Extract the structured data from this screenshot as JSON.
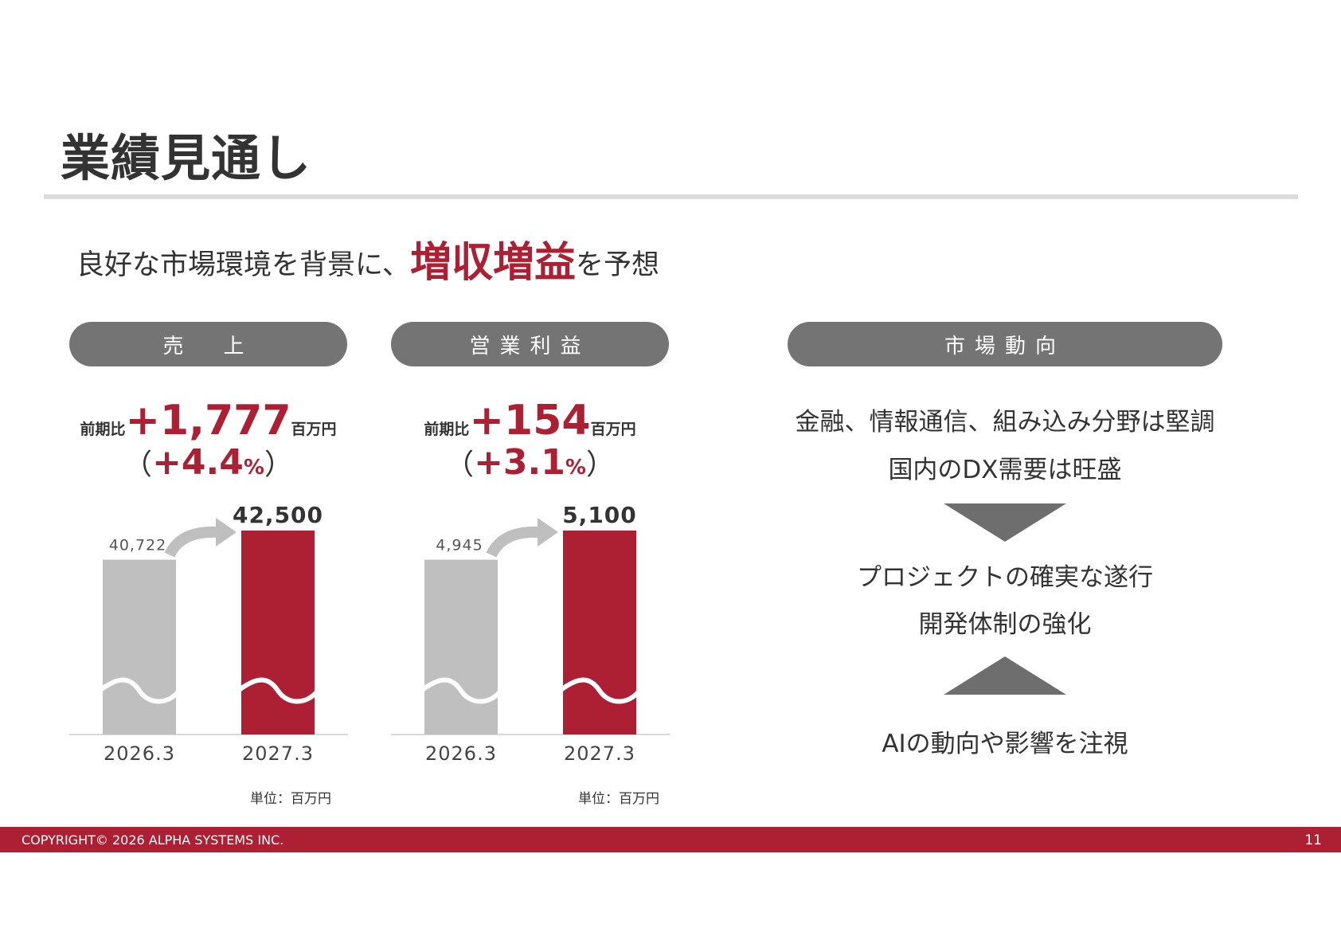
{
  "title": "業績見通し",
  "subtitle": {
    "prefix": "良好な市場環境を背景に、",
    "highlight": "増収増益",
    "suffix": "を予想"
  },
  "sales": {
    "pill": "売　上",
    "change_prefix": "前期比",
    "change_value": "+1,777",
    "change_unit": "百万円",
    "pct_open": "（",
    "pct_value": "+4.4",
    "pct_sign": "%",
    "pct_close": "）",
    "unit_note": "単位：百万円"
  },
  "op": {
    "pill": "営業利益",
    "change_prefix": "前期比",
    "change_value": "+154",
    "change_unit": "百万円",
    "pct_open": "（",
    "pct_value": "+3.1",
    "pct_sign": "%",
    "pct_close": "）",
    "unit_note": "単位：百万円"
  },
  "chart_data": [
    {
      "type": "bar",
      "categories": [
        "2026.3",
        "2027.3"
      ],
      "values": [
        40722,
        42500
      ],
      "value_labels": [
        "40,722",
        "42,500"
      ],
      "colors": [
        "#bfbfbf",
        "#ad1f33"
      ],
      "axis_break": true,
      "title": "",
      "xlabel": "",
      "ylabel": ""
    },
    {
      "type": "bar",
      "categories": [
        "2026.3",
        "2027.3"
      ],
      "values": [
        4945,
        5100
      ],
      "value_labels": [
        "4,945",
        "5,100"
      ],
      "colors": [
        "#bfbfbf",
        "#ad1f33"
      ],
      "axis_break": true,
      "title": "",
      "xlabel": "",
      "ylabel": ""
    }
  ],
  "market": {
    "pill": "市場動向",
    "line1": "金融、情報通信、組み込み分野は堅調",
    "line2": "国内のDX需要は旺盛",
    "line3": "プロジェクトの確実な遂行",
    "line4": "開発体制の強化",
    "line5": "AIの動向や影響を注視"
  },
  "footer": {
    "copyright": "COPYRIGHT© 2026 ALPHA SYSTEMS INC.",
    "page": "11"
  },
  "colors": {
    "accent": "#ad1f33",
    "pill": "#747474",
    "bar_prev": "#bfbfbf",
    "arrow": "#bfbfbf"
  }
}
